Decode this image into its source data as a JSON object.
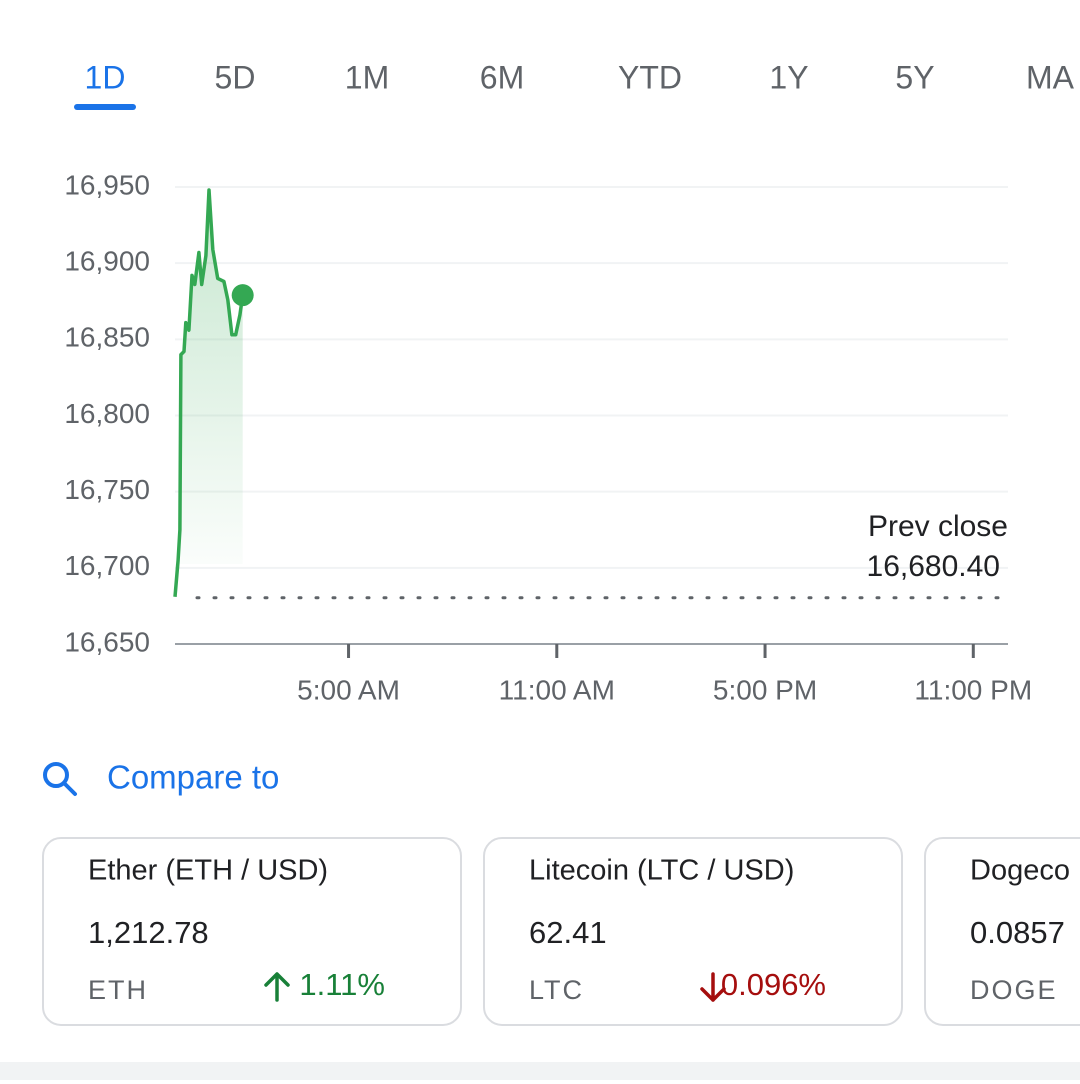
{
  "tabs": {
    "items": [
      "1D",
      "5D",
      "1M",
      "6M",
      "YTD",
      "1Y",
      "5Y",
      "MA"
    ],
    "selected": "1D"
  },
  "chart_data": {
    "type": "line",
    "color": "#34a853",
    "x": [
      0,
      0.09,
      0.14,
      0.17,
      0.26,
      0.31,
      0.4,
      0.49,
      0.57,
      0.69,
      0.77,
      0.89,
      0.98,
      1.09,
      1.23,
      1.41,
      1.52,
      1.64,
      1.75,
      1.87,
      1.95
    ],
    "values": [
      16681,
      16705,
      16725,
      16840,
      16842,
      16861,
      16856,
      16892,
      16886,
      16907,
      16886,
      16905,
      16948,
      16909,
      16890,
      16888,
      16876,
      16853,
      16853,
      16866,
      16879
    ],
    "xlim": [
      0,
      24
    ],
    "xticks": [
      {
        "value": 5,
        "label": "5:00 AM"
      },
      {
        "value": 11,
        "label": "11:00 AM"
      },
      {
        "value": 17,
        "label": "5:00 PM"
      },
      {
        "value": 23,
        "label": "11:00 PM"
      }
    ],
    "ylim": [
      16650,
      16950
    ],
    "yticks": [
      {
        "value": 16650,
        "label": "16,650"
      },
      {
        "value": 16700,
        "label": "16,700"
      },
      {
        "value": 16750,
        "label": "16,750"
      },
      {
        "value": 16800,
        "label": "16,800"
      },
      {
        "value": 16850,
        "label": "16,850"
      },
      {
        "value": 16900,
        "label": "16,900"
      },
      {
        "value": 16950,
        "label": "16,950"
      }
    ],
    "grid": true,
    "prev_close": {
      "label": "Prev close",
      "value": 16680.4,
      "value_label": "16,680.40"
    }
  },
  "compare": {
    "title": "Compare to",
    "cards": [
      {
        "name": "Ether (ETH / USD)",
        "price": "1,212.78",
        "symbol": "ETH",
        "change": "1.11%",
        "direction": "up"
      },
      {
        "name": "Litecoin (LTC / USD)",
        "price": "62.41",
        "symbol": "LTC",
        "change": "0.096%",
        "direction": "down"
      },
      {
        "name": "Dogeco",
        "price": "0.0857",
        "symbol": "DOGE"
      }
    ]
  }
}
